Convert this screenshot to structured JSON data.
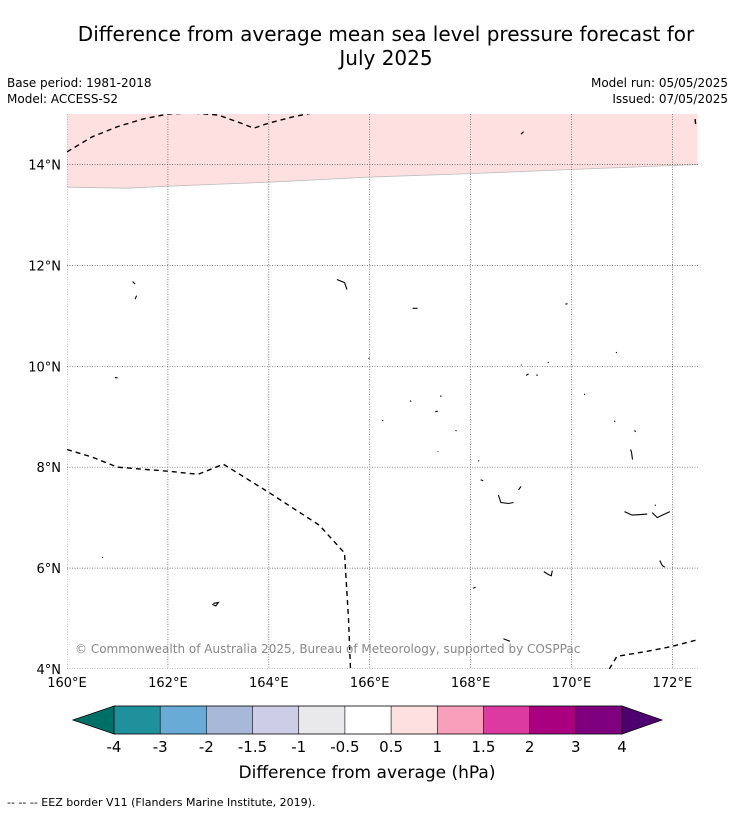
{
  "title_line1": "Difference from average mean sea level pressure forecast for",
  "title_line2": "July 2025",
  "meta": {
    "base_period": "Base period: 1981-2018",
    "model": "Model: ACCESS-S2",
    "model_run": "Model run: 05/05/2025",
    "issued": "Issued: 07/05/2025"
  },
  "map": {
    "lon_ticks": [
      "160°E",
      "162°E",
      "164°E",
      "166°E",
      "168°E",
      "170°E",
      "172°E"
    ],
    "lat_ticks": [
      "14°N",
      "12°N",
      "10°N",
      "8°N",
      "6°N",
      "4°N"
    ],
    "lon_range": [
      160,
      172.5
    ],
    "lat_range": [
      4,
      15
    ],
    "copyright": "© Commonwealth of Australia 2025, Bureau of Meteorology, supported by COSPPac",
    "anomaly_fill": {
      "category": "0.5 to 1",
      "color": "#fde0df",
      "southern_edge": [
        [
          160,
          13.55
        ],
        [
          161.2,
          13.53
        ],
        [
          162,
          13.57
        ],
        [
          164,
          13.65
        ],
        [
          166,
          13.75
        ],
        [
          168,
          13.82
        ],
        [
          170,
          13.9
        ],
        [
          172.5,
          14.0
        ]
      ]
    },
    "eez_border_lines": [
      [
        [
          160,
          14.25
        ],
        [
          160.5,
          14.55
        ],
        [
          161,
          14.75
        ],
        [
          161.5,
          14.9
        ],
        [
          162,
          15.0
        ],
        [
          162.5,
          15.02
        ],
        [
          163,
          14.98
        ],
        [
          163.5,
          14.8
        ],
        [
          163.7,
          14.72
        ],
        [
          164,
          14.82
        ],
        [
          164.5,
          14.95
        ],
        [
          165,
          15.05
        ]
      ],
      [
        [
          172.45,
          14.9
        ],
        [
          172.46,
          14.8
        ]
      ],
      [
        [
          160,
          8.35
        ],
        [
          160.5,
          8.2
        ],
        [
          161,
          8.0
        ],
        [
          162,
          7.92
        ],
        [
          162.6,
          7.86
        ],
        [
          163.1,
          8.06
        ],
        [
          164,
          7.5
        ],
        [
          165,
          6.85
        ],
        [
          165.5,
          6.3
        ],
        [
          165.58,
          5.0
        ],
        [
          165.62,
          4.0
        ]
      ],
      [
        [
          170.75,
          4.0
        ],
        [
          170.9,
          4.25
        ],
        [
          171.5,
          4.35
        ],
        [
          172,
          4.45
        ],
        [
          172.5,
          4.58
        ]
      ]
    ],
    "islands": [
      [
        [
          161.3,
          11.68
        ],
        [
          161.35,
          11.63
        ]
      ],
      [
        [
          161.38,
          11.4
        ],
        [
          161.35,
          11.33
        ]
      ],
      [
        [
          165.35,
          11.72
        ],
        [
          165.5,
          11.66
        ],
        [
          165.55,
          11.52
        ]
      ],
      [
        [
          166.85,
          11.15
        ],
        [
          166.95,
          11.15
        ]
      ],
      [
        [
          169.88,
          11.23
        ],
        [
          169.92,
          11.24
        ]
      ],
      [
        [
          160.95,
          9.78
        ],
        [
          161.0,
          9.77
        ]
      ],
      [
        [
          165.98,
          10.17
        ],
        [
          165.99,
          10.15
        ]
      ],
      [
        [
          169.0,
          10.03
        ],
        [
          169.01,
          10.02
        ]
      ],
      [
        [
          169.53,
          10.08
        ],
        [
          169.55,
          10.07
        ]
      ],
      [
        [
          170.88,
          10.28
        ],
        [
          170.9,
          10.27
        ]
      ],
      [
        [
          169.1,
          9.82
        ],
        [
          169.15,
          9.85
        ]
      ],
      [
        [
          169.3,
          9.83
        ],
        [
          169.33,
          9.82
        ]
      ],
      [
        [
          167.4,
          9.42
        ],
        [
          167.42,
          9.4
        ]
      ],
      [
        [
          166.8,
          9.32
        ],
        [
          166.82,
          9.3
        ]
      ],
      [
        [
          167.3,
          9.1
        ],
        [
          167.35,
          9.11
        ]
      ],
      [
        [
          166.25,
          8.93
        ],
        [
          166.27,
          8.92
        ]
      ],
      [
        [
          170.25,
          9.45
        ],
        [
          170.27,
          9.44
        ]
      ],
      [
        [
          167.7,
          8.73
        ],
        [
          167.72,
          8.72
        ]
      ],
      [
        [
          167.35,
          8.32
        ],
        [
          167.36,
          8.31
        ]
      ],
      [
        [
          168.15,
          8.13
        ],
        [
          168.17,
          8.12
        ]
      ],
      [
        [
          170.85,
          8.92
        ],
        [
          170.86,
          8.9
        ]
      ],
      [
        [
          171.25,
          8.73
        ],
        [
          171.27,
          8.7
        ]
      ],
      [
        [
          171.17,
          8.35
        ],
        [
          171.19,
          8.3
        ],
        [
          171.21,
          8.15
        ]
      ],
      [
        [
          168.2,
          7.75
        ],
        [
          168.25,
          7.73
        ]
      ],
      [
        [
          168.55,
          7.45
        ],
        [
          168.6,
          7.3
        ],
        [
          168.75,
          7.28
        ],
        [
          168.85,
          7.3
        ]
      ],
      [
        [
          168.95,
          7.55
        ],
        [
          169.0,
          7.62
        ]
      ],
      [
        [
          171.05,
          7.12
        ],
        [
          171.2,
          7.05
        ],
        [
          171.5,
          7.07
        ]
      ],
      [
        [
          171.6,
          7.1
        ],
        [
          171.7,
          7.0
        ],
        [
          171.8,
          7.05
        ],
        [
          171.95,
          7.12
        ]
      ],
      [
        [
          171.65,
          7.25
        ],
        [
          171.67,
          7.24
        ]
      ],
      [
        [
          169.45,
          5.93
        ],
        [
          169.55,
          5.87
        ],
        [
          169.6,
          5.85
        ],
        [
          169.62,
          5.95
        ]
      ],
      [
        [
          171.75,
          6.15
        ],
        [
          171.8,
          6.05
        ],
        [
          171.85,
          6.02
        ]
      ],
      [
        [
          160.7,
          6.22
        ],
        [
          160.71,
          6.2
        ]
      ],
      [
        [
          168.05,
          5.6
        ],
        [
          168.1,
          5.62
        ]
      ],
      [
        [
          162.9,
          5.3
        ],
        [
          163.0,
          5.32
        ],
        [
          162.95,
          5.25
        ],
        [
          162.88,
          5.28
        ]
      ],
      [
        [
          168.65,
          4.6
        ],
        [
          168.78,
          4.55
        ]
      ],
      [
        [
          169.0,
          14.6
        ],
        [
          169.05,
          14.65
        ]
      ]
    ]
  },
  "colorbar": {
    "colors": [
      "#007066",
      "#1e919c",
      "#67abd6",
      "#a7b8d8",
      "#cdcde5",
      "#e9e9ec",
      "#ffffff",
      "#fde0df",
      "#f79fbb",
      "#dc3aa0",
      "#a8007e",
      "#7f007e",
      "#4f0070"
    ],
    "tick_labels": [
      "-4",
      "-3",
      "-2",
      "-1.5",
      "-1",
      "-0.5",
      "0.5",
      "1",
      "1.5",
      "2",
      "3",
      "4"
    ],
    "label": "Difference from average (hPa)"
  },
  "footnote": "--  --  -- EEZ border V11 (Flanders Marine Institute, 2019)."
}
